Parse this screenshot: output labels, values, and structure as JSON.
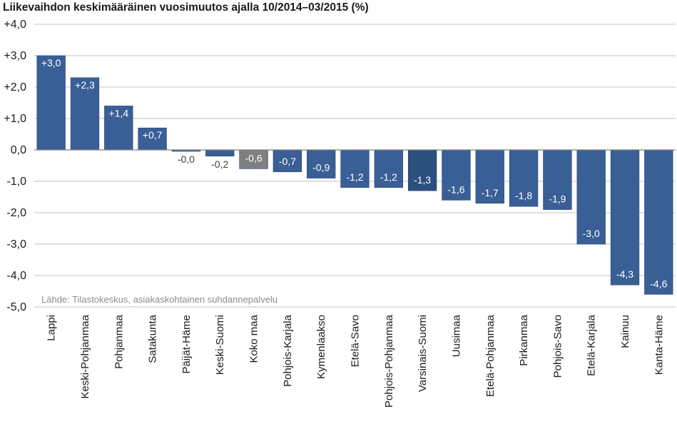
{
  "chart_data": {
    "type": "bar",
    "title": "Liikevaihdon keskimääräinen vuosimuutos ajalla 10/2014–03/2015 (%)",
    "source": "Lähde: Tilastokeskus, asiakaskohtainen suhdannepalvelu",
    "categories": [
      "Lappi",
      "Keski-Pohjanmaa",
      "Pohjanmaa",
      "Satakunta",
      "Päijät-Häme",
      "Keski-Suomi",
      "Koko maa",
      "Pohjois-Karjala",
      "Kymenlaakso",
      "Etelä-Savo",
      "Pohjois-Pohjanmaa",
      "Varsinais-Suomi",
      "Uusimaa",
      "Etelä-Pohjanmaa",
      "Pirkanmaa",
      "Pohjois-Savo",
      "Etelä-Karjala",
      "Kainuu",
      "Kanta-Häme"
    ],
    "values": [
      3.0,
      2.3,
      1.4,
      0.7,
      -0.04,
      -0.2,
      -0.6,
      -0.7,
      -0.9,
      -1.2,
      -1.2,
      -1.3,
      -1.6,
      -1.7,
      -1.8,
      -1.9,
      -3.0,
      -4.3,
      -4.6
    ],
    "data_labels": [
      "+3,0",
      "+2,3",
      "+1,4",
      "+0,7",
      "-0,0",
      "-0,2",
      "-0,6",
      "-0,7",
      "-0,9",
      "-1,2",
      "-1,2",
      "-1,3",
      "-1,6",
      "-1,7",
      "-1,8",
      "-1,9",
      "-3,0",
      "-4,3",
      "-4,6"
    ],
    "bar_colors": [
      "#3a5f96",
      "#3a5f96",
      "#3a5f96",
      "#3a5f96",
      "#3a5f96",
      "#3a5f96",
      "#7f7f7f",
      "#3a5f96",
      "#3a5f96",
      "#3a5f96",
      "#3a5f96",
      "#2d4f7e",
      "#3a5f96",
      "#3a5f96",
      "#3a5f96",
      "#3a5f96",
      "#3a5f96",
      "#3a5f96",
      "#3a5f96"
    ],
    "ylim": [
      -5,
      4
    ],
    "yticks": [
      4,
      3,
      2,
      1,
      0,
      -1,
      -2,
      -3,
      -4,
      -5
    ],
    "ytick_labels": [
      "+4,0",
      "+3,0",
      "+2,0",
      "+1,0",
      "0,0",
      "-1,0",
      "-2,0",
      "-3,0",
      "-4,0",
      "-5,0"
    ],
    "xlabel": "",
    "ylabel": "",
    "grid": true,
    "legend": "none",
    "colors": {
      "grid": "#c0c0c0",
      "axis": "#808080",
      "label_inside": "#ffffff",
      "label_outside": "#404040"
    }
  }
}
